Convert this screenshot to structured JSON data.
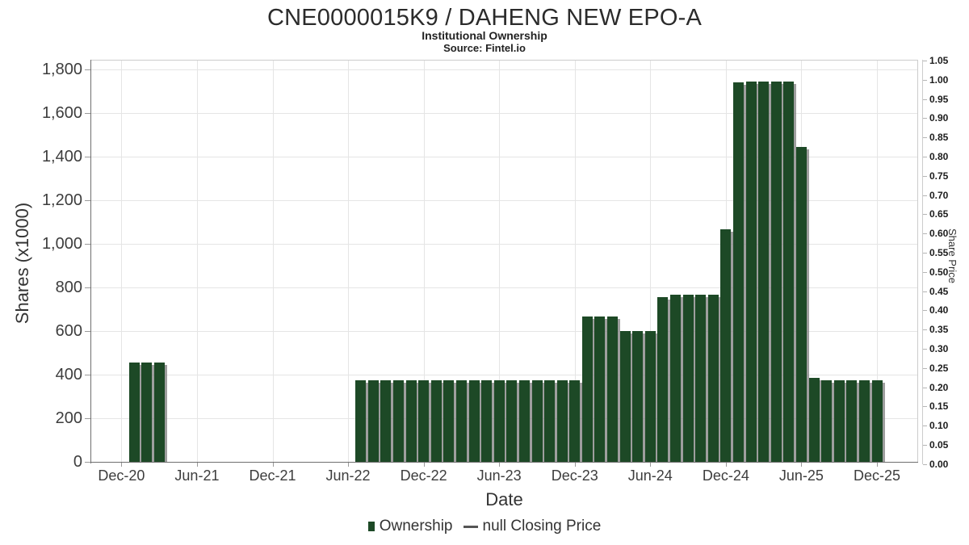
{
  "header": {
    "title": "CNE0000015K9 / DAHENG NEW EPO-A",
    "subtitle": "Institutional Ownership",
    "source": "Source: Fintel.io"
  },
  "legend": {
    "items": [
      {
        "label": "Ownership",
        "marker": "square",
        "color": "#1d4926"
      },
      {
        "label": "null Closing Price",
        "marker": "dash",
        "color": "#555555"
      }
    ]
  },
  "chart_data": {
    "type": "bar",
    "title": "CNE0000015K9 / DAHENG NEW EPO-A",
    "subtitle": "Institutional Ownership",
    "source": "Source: Fintel.io",
    "xlabel": "Date",
    "ylabel": "Shares (x1000)",
    "ylabel_right": "Share Price",
    "bar_color": "#1d4926",
    "grid": true,
    "legend_position": "bottom",
    "x_ticks": [
      "Dec-20",
      "Jun-21",
      "Dec-21",
      "Jun-22",
      "Dec-22",
      "Jun-23",
      "Dec-23",
      "Jun-24",
      "Dec-24",
      "Jun-25",
      "Dec-25"
    ],
    "y_left": {
      "min": 0,
      "max": 1800,
      "ticks": [
        "0",
        "200",
        "400",
        "600",
        "800",
        "1,000",
        "1,200",
        "1,400",
        "1,600",
        "1,800"
      ]
    },
    "y_right": {
      "min": 0,
      "max": 1.05,
      "ticks": [
        "0.00",
        "0.05",
        "0.10",
        "0.15",
        "0.20",
        "0.25",
        "0.30",
        "0.35",
        "0.40",
        "0.45",
        "0.50",
        "0.55",
        "0.60",
        "0.65",
        "0.70",
        "0.75",
        "0.80",
        "0.85",
        "0.90",
        "0.95",
        "1.00",
        "1.05"
      ]
    },
    "series": [
      {
        "name": "Ownership",
        "points": [
          {
            "date": "2021-01",
            "value": 455
          },
          {
            "date": "2021-02",
            "value": 455
          },
          {
            "date": "2021-03",
            "value": 455
          },
          {
            "date": "2022-07",
            "value": 375
          },
          {
            "date": "2022-08",
            "value": 375
          },
          {
            "date": "2022-09",
            "value": 375
          },
          {
            "date": "2022-10",
            "value": 375
          },
          {
            "date": "2022-11",
            "value": 375
          },
          {
            "date": "2022-12",
            "value": 375
          },
          {
            "date": "2023-01",
            "value": 375
          },
          {
            "date": "2023-02",
            "value": 375
          },
          {
            "date": "2023-03",
            "value": 375
          },
          {
            "date": "2023-04",
            "value": 375
          },
          {
            "date": "2023-05",
            "value": 375
          },
          {
            "date": "2023-06",
            "value": 375
          },
          {
            "date": "2023-07",
            "value": 375
          },
          {
            "date": "2023-08",
            "value": 375
          },
          {
            "date": "2023-09",
            "value": 375
          },
          {
            "date": "2023-10",
            "value": 375
          },
          {
            "date": "2023-11",
            "value": 375
          },
          {
            "date": "2023-12",
            "value": 375
          },
          {
            "date": "2024-01",
            "value": 665
          },
          {
            "date": "2024-02",
            "value": 665
          },
          {
            "date": "2024-03",
            "value": 665
          },
          {
            "date": "2024-04",
            "value": 600
          },
          {
            "date": "2024-05",
            "value": 600
          },
          {
            "date": "2024-06",
            "value": 600
          },
          {
            "date": "2024-07",
            "value": 757
          },
          {
            "date": "2024-08",
            "value": 768
          },
          {
            "date": "2024-09",
            "value": 768
          },
          {
            "date": "2024-10",
            "value": 768
          },
          {
            "date": "2024-11",
            "value": 768
          },
          {
            "date": "2024-12",
            "value": 1068
          },
          {
            "date": "2025-01",
            "value": 1740
          },
          {
            "date": "2025-02",
            "value": 1745
          },
          {
            "date": "2025-03",
            "value": 1745
          },
          {
            "date": "2025-04",
            "value": 1745
          },
          {
            "date": "2025-05",
            "value": 1745
          },
          {
            "date": "2025-06",
            "value": 1443
          },
          {
            "date": "2025-07",
            "value": 386
          },
          {
            "date": "2025-08",
            "value": 374
          },
          {
            "date": "2025-09",
            "value": 374
          },
          {
            "date": "2025-10",
            "value": 374
          },
          {
            "date": "2025-11",
            "value": 374
          },
          {
            "date": "2025-12",
            "value": 374
          }
        ]
      },
      {
        "name": "null Closing Price",
        "points": []
      }
    ]
  }
}
